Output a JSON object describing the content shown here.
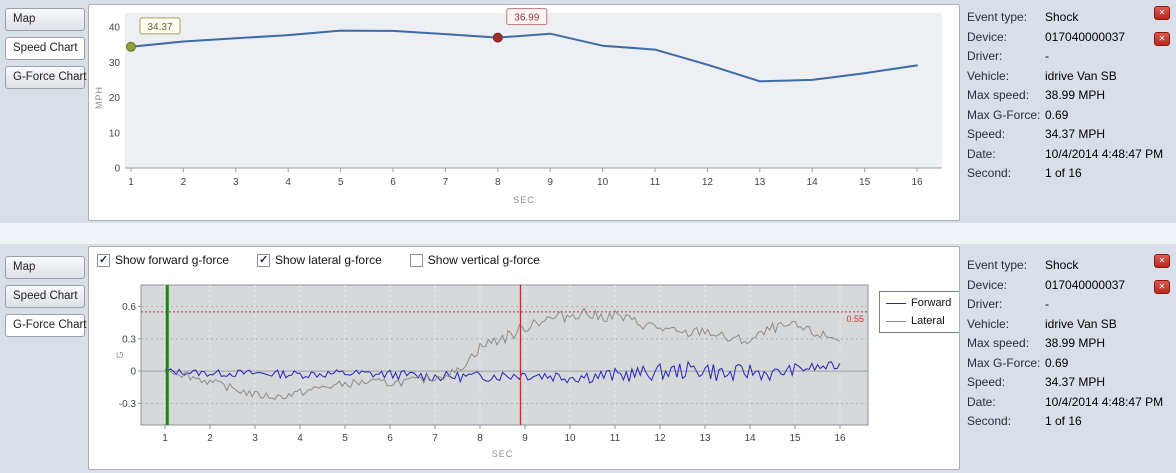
{
  "tabs": [
    "Map",
    "Speed Chart",
    "G-Force Chart"
  ],
  "panels": {
    "top": {
      "active_tab": "Speed Chart"
    },
    "bottom": {
      "active_tab": "G-Force Chart"
    }
  },
  "panel_buttons": {
    "glyph": "✕"
  },
  "event_info": {
    "rows": [
      {
        "label": "Event type:",
        "value": "Shock"
      },
      {
        "label": "Device:",
        "value": "017040000037"
      },
      {
        "label": "Driver:",
        "value": "-"
      },
      {
        "label": "Vehicle:",
        "value": "idrive Van SB"
      },
      {
        "label": "Max speed:",
        "value": "38.99 MPH"
      },
      {
        "label": "Max G-Force:",
        "value": "0.69"
      },
      {
        "label": "Speed:",
        "value": "34.37 MPH"
      },
      {
        "label": "Date:",
        "value": "10/4/2014 4:48:47 PM"
      },
      {
        "label": "Second:",
        "value": "1 of 16"
      }
    ]
  },
  "gforce_controls": {
    "check_glyph": "✓",
    "checkboxes": [
      {
        "label": "Show forward g-force",
        "checked": true
      },
      {
        "label": "Show lateral g-force",
        "checked": true
      },
      {
        "label": "Show vertical g-force",
        "checked": false
      }
    ]
  },
  "chart_data": [
    {
      "id": "speed",
      "type": "line",
      "xlabel": "SEC",
      "ylabel": "MPH",
      "xlim": [
        1,
        16
      ],
      "ylim": [
        0,
        40
      ],
      "xticks": [
        1,
        2,
        3,
        4,
        5,
        6,
        7,
        8,
        9,
        10,
        11,
        12,
        13,
        14,
        15,
        16
      ],
      "yticks": [
        0,
        10,
        20,
        30,
        40
      ],
      "x": [
        1,
        2,
        3,
        4,
        5,
        6,
        7,
        8,
        9,
        10,
        11,
        12,
        13,
        14,
        15,
        16
      ],
      "values": [
        34.37,
        35.9,
        36.8,
        37.7,
        38.99,
        38.9,
        38.0,
        36.99,
        38.1,
        34.7,
        33.6,
        29.3,
        24.6,
        25.0,
        26.9,
        29.1
      ],
      "line_color": "#3b6ca8",
      "plot_bg": "#edeff3",
      "markers": [
        {
          "x": 1,
          "y": 34.37,
          "label": "34.37",
          "dot_fill": "#8fa03c",
          "dot_border": "#66762a",
          "box_bg": "#fcfcf0",
          "box_border": "#a8a266",
          "text_color": "#68683a"
        },
        {
          "x": 8,
          "y": 36.99,
          "label": "36.99",
          "dot_fill": "#a02c2c",
          "dot_border": "#7c1f1f",
          "box_bg": "#fdf4f4",
          "box_border": "#bd7777",
          "text_color": "#993333"
        }
      ]
    },
    {
      "id": "gforce",
      "type": "line",
      "xlabel": "SEC",
      "ylabel": "G",
      "xlim": [
        1,
        16
      ],
      "ylim": [
        -0.5,
        0.8
      ],
      "xticks": [
        1,
        2,
        3,
        4,
        5,
        6,
        7,
        8,
        9,
        10,
        11,
        12,
        13,
        14,
        15,
        16
      ],
      "yticks": [
        -0.3,
        0,
        0.3,
        0.6
      ],
      "plot_bg": "#d6d8da",
      "threshold": {
        "value": 0.55,
        "label": "0.55",
        "color": "#cc3333"
      },
      "start_marker": {
        "x": 1.05,
        "color": "#0f8a0f"
      },
      "event_marker": {
        "x": 8.9,
        "color": "#c03030"
      },
      "legend": {
        "entries": [
          {
            "label": "Forward",
            "color": "#2424bb"
          },
          {
            "label": "Lateral",
            "color": "#8c8c8c"
          }
        ]
      },
      "series": [
        {
          "name": "Forward",
          "color": "#2424bb",
          "trend_x": [
            1,
            2,
            3,
            4,
            5,
            6,
            7,
            8,
            9,
            10,
            11,
            12,
            13,
            13.5,
            14,
            14.5,
            15,
            16
          ],
          "trend_y": [
            0,
            -0.02,
            -0.02,
            -0.03,
            -0.02,
            -0.03,
            -0.05,
            -0.05,
            -0.03,
            -0.05,
            -0.04,
            -0.01,
            0.02,
            -0.04,
            0.0,
            -0.03,
            0.02,
            0.05
          ],
          "noise_x": [
            1,
            8,
            12.5,
            13.5,
            15,
            16
          ],
          "noise_amp": [
            0.03,
            0.05,
            0.08,
            0.09,
            0.05,
            0.04
          ]
        },
        {
          "name": "Lateral",
          "color": "#8c8c8c",
          "trend_x": [
            1,
            1.5,
            2,
            2.5,
            3,
            3.5,
            4,
            4.5,
            5,
            5.5,
            6,
            6.5,
            7,
            7.5,
            8,
            8.3,
            8.6,
            8.9,
            9.2,
            9.5,
            10,
            10.3,
            10.6,
            11,
            11.5,
            12,
            12.5,
            13,
            13.5,
            14,
            14.5,
            15,
            15.5,
            16
          ],
          "trend_y": [
            0.02,
            -0.04,
            -0.1,
            -0.16,
            -0.22,
            -0.24,
            -0.2,
            -0.15,
            -0.12,
            -0.1,
            -0.11,
            -0.09,
            -0.06,
            0.0,
            0.22,
            0.28,
            0.32,
            0.38,
            0.46,
            0.48,
            0.52,
            0.55,
            0.5,
            0.52,
            0.45,
            0.4,
            0.34,
            0.38,
            0.3,
            0.28,
            0.4,
            0.42,
            0.34,
            0.3
          ],
          "noise_x": [
            1,
            7.5,
            8.5,
            12,
            16
          ],
          "noise_amp": [
            0.035,
            0.04,
            0.06,
            0.05,
            0.045
          ]
        }
      ]
    }
  ]
}
